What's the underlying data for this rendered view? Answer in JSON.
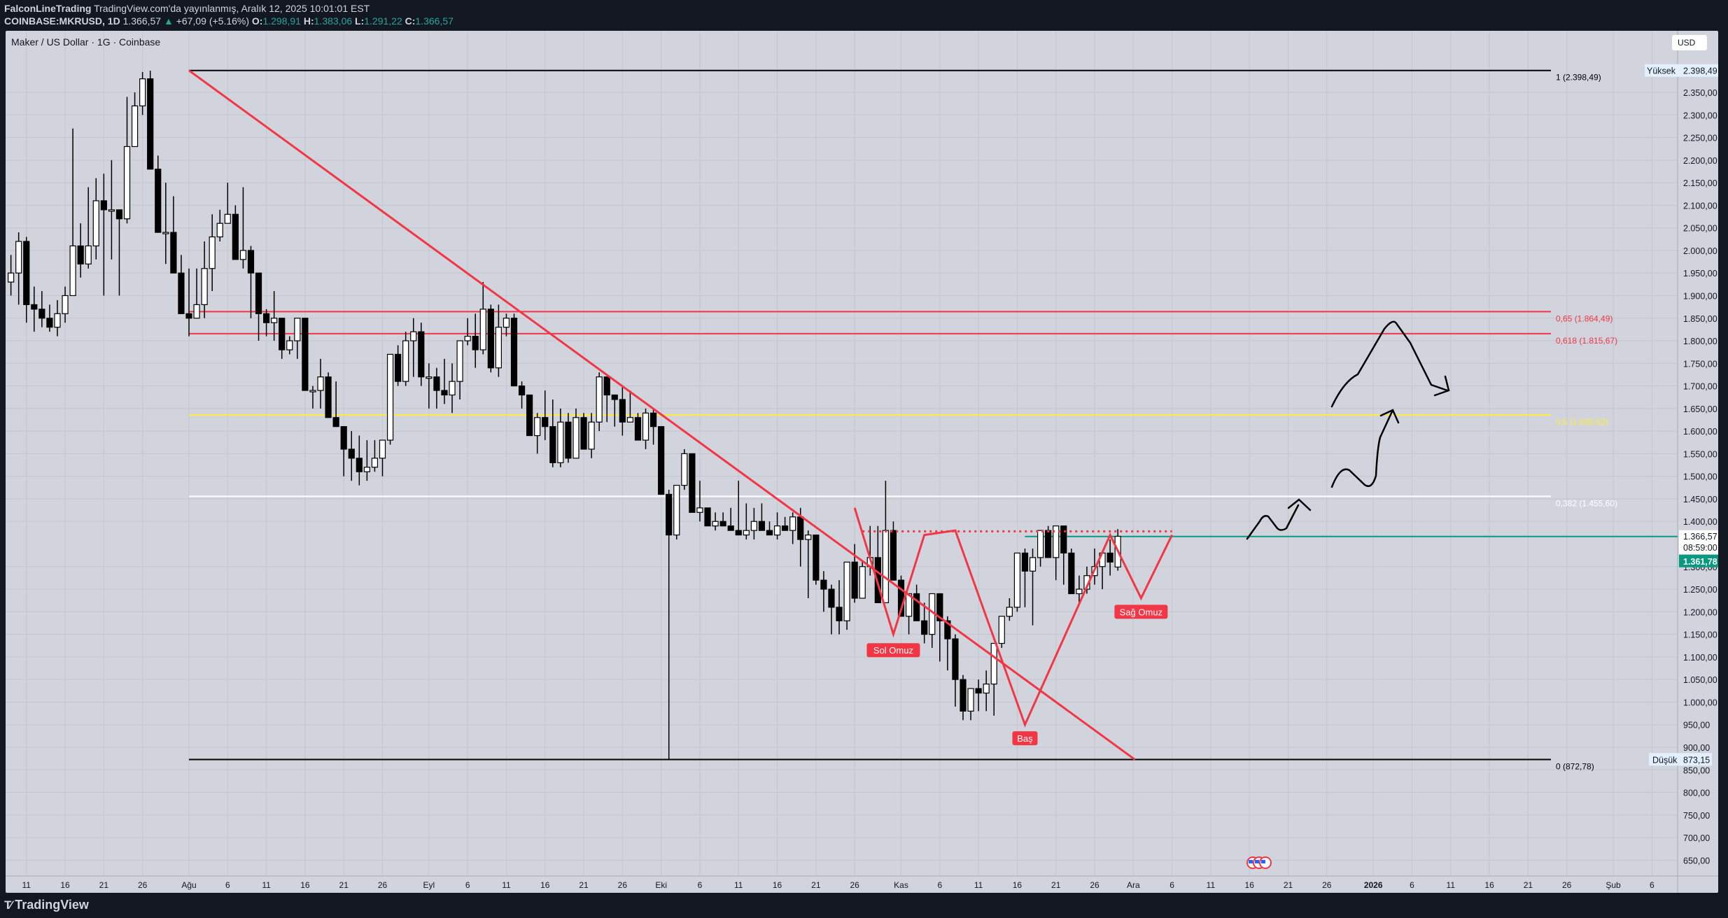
{
  "header": {
    "author": "FalconLineTrading",
    "published": "TradingView.com'da yayınlanmış, Aralık 12, 2025 10:01:01 EST",
    "symbol": "COINBASE:MKRUSD, 1D",
    "last": "1.366,57",
    "change": "+67,09 (+5.16%)",
    "o_label": "O:",
    "o": "1.298,91",
    "h_label": "H:",
    "h": "1.383,06",
    "l_label": "L:",
    "l": "1.291,22",
    "c_label": "C:",
    "c": "1.366,57"
  },
  "chart": {
    "legend_title": "Maker / US Dollar · 1G · Coinbase",
    "currency_button": "USD",
    "high_tag": "Yüksek",
    "high_value": "2.398,49",
    "low_tag": "Düşük",
    "low_value": "873,15",
    "last_price": "1.366,57",
    "countdown": "08:59:00",
    "second_price": "1.361,78",
    "patterns": {
      "left_shoulder": "Sol Omuz",
      "head": "Baş",
      "right_shoulder": "Sağ Omuz"
    }
  },
  "footer": {
    "logo": "TradingView"
  },
  "colors": {
    "background": "#d1d4dc",
    "frame": "#131722",
    "trendline": "#f23645",
    "fib_red": "#f23645",
    "fib_yellow": "#ffeb3b",
    "fib_white": "#ffffff",
    "current_price": "#089981",
    "label_red": "#f23645"
  },
  "chart_data": {
    "type": "candlestick",
    "title": "Maker / US Dollar · 1G · Coinbase",
    "xlabel": "",
    "ylabel": "USD",
    "ylim": [
      620,
      2420
    ],
    "grid": true,
    "y_ticks": [
      "2.350,00",
      "2.300,00",
      "2.250,00",
      "2.200,00",
      "2.150,00",
      "2.100,00",
      "2.050,00",
      "2.000,00",
      "1.950,00",
      "1.900,00",
      "1.850,00",
      "1.800,00",
      "1.750,00",
      "1.700,00",
      "1.650,00",
      "1.600,00",
      "1.550,00",
      "1.500,00",
      "1.450,00",
      "1.400,00",
      "1.300,00",
      "1.250,00",
      "1.200,00",
      "1.150,00",
      "1.100,00",
      "1.050,00",
      "1.000,00",
      "950,00",
      "900,00",
      "850,00",
      "800,00",
      "750,00",
      "700,00",
      "650,00"
    ],
    "x_ticks": [
      {
        "label": "11",
        "day": -21
      },
      {
        "label": "16",
        "day": -16
      },
      {
        "label": "21",
        "day": -11
      },
      {
        "label": "26",
        "day": -6
      },
      {
        "label": "Ağu",
        "day": 0
      },
      {
        "label": "6",
        "day": 5
      },
      {
        "label": "11",
        "day": 10
      },
      {
        "label": "16",
        "day": 15
      },
      {
        "label": "21",
        "day": 20
      },
      {
        "label": "26",
        "day": 25
      },
      {
        "label": "Eyl",
        "day": 31
      },
      {
        "label": "6",
        "day": 36
      },
      {
        "label": "11",
        "day": 41
      },
      {
        "label": "16",
        "day": 46
      },
      {
        "label": "21",
        "day": 51
      },
      {
        "label": "26",
        "day": 56
      },
      {
        "label": "Eki",
        "day": 61
      },
      {
        "label": "6",
        "day": 66
      },
      {
        "label": "11",
        "day": 71
      },
      {
        "label": "16",
        "day": 76
      },
      {
        "label": "21",
        "day": 81
      },
      {
        "label": "26",
        "day": 86
      },
      {
        "label": "Kas",
        "day": 92
      },
      {
        "label": "6",
        "day": 97
      },
      {
        "label": "11",
        "day": 102
      },
      {
        "label": "16",
        "day": 107
      },
      {
        "label": "21",
        "day": 112
      },
      {
        "label": "26",
        "day": 117
      },
      {
        "label": "Ara",
        "day": 122
      },
      {
        "label": "6",
        "day": 127
      },
      {
        "label": "11",
        "day": 132
      },
      {
        "label": "16",
        "day": 137
      },
      {
        "label": "21",
        "day": 142
      },
      {
        "label": "26",
        "day": 147
      },
      {
        "label": "2026",
        "day": 153
      },
      {
        "label": "6",
        "day": 158
      },
      {
        "label": "11",
        "day": 163
      },
      {
        "label": "16",
        "day": 168
      },
      {
        "label": "21",
        "day": 173
      },
      {
        "label": "26",
        "day": 178
      },
      {
        "label": "Şub",
        "day": 184
      },
      {
        "label": "6",
        "day": 189
      }
    ],
    "fibonacci": [
      {
        "level": "1",
        "value": 2398.49,
        "label": "1 (2.398,49)",
        "color": "#000000"
      },
      {
        "level": "0.65",
        "value": 1864.49,
        "label": "0,65 (1.864,49)",
        "color": "#f23645"
      },
      {
        "level": "0.618",
        "value": 1815.67,
        "label": "0,618 (1.815,67)",
        "color": "#f23645"
      },
      {
        "level": "0.5",
        "value": 1635.63,
        "label": "0,5 (1.635,63)",
        "color": "#ffeb3b"
      },
      {
        "level": "0.382",
        "value": 1455.6,
        "label": "0,382 (1.455,60)",
        "color": "#ffffff"
      },
      {
        "level": "0",
        "value": 872.78,
        "label": "0 (872,78)",
        "color": "#000000"
      }
    ],
    "candles_start_day": -23,
    "candles": [
      [
        1930,
        1990,
        1900,
        1950
      ],
      [
        1950,
        2040,
        1880,
        2020
      ],
      [
        2020,
        2030,
        1840,
        1880
      ],
      [
        1880,
        1920,
        1820,
        1870
      ],
      [
        1870,
        1910,
        1830,
        1850
      ],
      [
        1850,
        1880,
        1820,
        1830
      ],
      [
        1830,
        1890,
        1810,
        1860
      ],
      [
        1860,
        1920,
        1840,
        1900
      ],
      [
        1900,
        2270,
        1900,
        2010
      ],
      [
        2010,
        2060,
        1940,
        1970
      ],
      [
        1970,
        2140,
        1960,
        2010
      ],
      [
        2010,
        2160,
        1980,
        2110
      ],
      [
        2110,
        2170,
        1900,
        2090
      ],
      [
        2090,
        2200,
        1980,
        2090
      ],
      [
        2090,
        2080,
        1900,
        2070
      ],
      [
        2070,
        2340,
        2060,
        2230
      ],
      [
        2230,
        2350,
        2230,
        2320
      ],
      [
        2320,
        2395,
        2300,
        2380
      ],
      [
        2380,
        2398,
        2180,
        2180
      ],
      [
        2180,
        2210,
        2070,
        2040
      ],
      [
        2040,
        2150,
        1970,
        2040
      ],
      [
        2040,
        2120,
        2030,
        1950
      ],
      [
        1950,
        1990,
        1930,
        1860
      ],
      [
        1860,
        1960,
        1810,
        1850
      ],
      [
        1850,
        1960,
        1870,
        1880
      ],
      [
        1880,
        2020,
        1850,
        1960
      ],
      [
        1960,
        2080,
        1910,
        2030
      ],
      [
        2030,
        2090,
        2020,
        2060
      ],
      [
        2060,
        2150,
        2060,
        2080
      ],
      [
        2080,
        2100,
        1980,
        1980
      ],
      [
        1980,
        2140,
        1960,
        2000
      ],
      [
        2000,
        2010,
        1850,
        1950
      ],
      [
        1950,
        1940,
        1800,
        1860
      ],
      [
        1860,
        1870,
        1810,
        1840
      ],
      [
        1840,
        1910,
        1800,
        1850
      ],
      [
        1850,
        1850,
        1760,
        1780
      ],
      [
        1780,
        1810,
        1770,
        1800
      ],
      [
        1800,
        1800,
        1760,
        1850
      ],
      [
        1850,
        1820,
        1700,
        1690
      ],
      [
        1690,
        1700,
        1650,
        1690
      ],
      [
        1690,
        1760,
        1650,
        1720
      ],
      [
        1720,
        1730,
        1640,
        1630
      ],
      [
        1630,
        1710,
        1630,
        1610
      ],
      [
        1610,
        1600,
        1500,
        1560
      ],
      [
        1560,
        1600,
        1490,
        1540
      ],
      [
        1540,
        1590,
        1480,
        1510
      ],
      [
        1510,
        1580,
        1490,
        1520
      ],
      [
        1520,
        1580,
        1510,
        1540
      ],
      [
        1540,
        1560,
        1500,
        1580
      ],
      [
        1580,
        1750,
        1570,
        1770
      ],
      [
        1770,
        1790,
        1700,
        1710
      ],
      [
        1710,
        1820,
        1700,
        1800
      ],
      [
        1800,
        1850,
        1720,
        1820
      ],
      [
        1820,
        1840,
        1700,
        1720
      ],
      [
        1720,
        1750,
        1650,
        1720
      ],
      [
        1720,
        1740,
        1650,
        1690
      ],
      [
        1690,
        1760,
        1660,
        1680
      ],
      [
        1680,
        1750,
        1640,
        1710
      ],
      [
        1710,
        1770,
        1670,
        1800
      ],
      [
        1800,
        1850,
        1790,
        1810
      ],
      [
        1810,
        1860,
        1740,
        1780
      ],
      [
        1780,
        1930,
        1770,
        1870
      ],
      [
        1870,
        1880,
        1730,
        1740
      ],
      [
        1740,
        1880,
        1720,
        1830
      ],
      [
        1830,
        1860,
        1810,
        1850
      ],
      [
        1850,
        1860,
        1700,
        1700
      ],
      [
        1700,
        1710,
        1650,
        1680
      ],
      [
        1680,
        1680,
        1600,
        1590
      ],
      [
        1590,
        1640,
        1550,
        1630
      ],
      [
        1630,
        1690,
        1580,
        1610
      ],
      [
        1610,
        1670,
        1520,
        1530
      ],
      [
        1530,
        1650,
        1520,
        1620
      ],
      [
        1620,
        1640,
        1530,
        1540
      ],
      [
        1540,
        1650,
        1540,
        1630
      ],
      [
        1630,
        1640,
        1560,
        1560
      ],
      [
        1560,
        1640,
        1540,
        1620
      ],
      [
        1620,
        1730,
        1600,
        1720
      ],
      [
        1720,
        1700,
        1620,
        1680
      ],
      [
        1680,
        1680,
        1610,
        1670
      ],
      [
        1670,
        1700,
        1590,
        1620
      ],
      [
        1620,
        1690,
        1620,
        1630
      ],
      [
        1630,
        1640,
        1580,
        1580
      ],
      [
        1580,
        1650,
        1560,
        1640
      ],
      [
        1640,
        1650,
        1570,
        1610
      ],
      [
        1610,
        1600,
        1540,
        1460
      ],
      [
        1460,
        1470,
        872,
        1370
      ],
      [
        1370,
        1470,
        1360,
        1480
      ],
      [
        1480,
        1560,
        1470,
        1550
      ],
      [
        1550,
        1530,
        1420,
        1420
      ],
      [
        1420,
        1490,
        1400,
        1430
      ],
      [
        1430,
        1430,
        1400,
        1390
      ],
      [
        1390,
        1420,
        1380,
        1400
      ],
      [
        1400,
        1420,
        1390,
        1390
      ],
      [
        1390,
        1430,
        1380,
        1380
      ],
      [
        1380,
        1490,
        1380,
        1370
      ],
      [
        1370,
        1440,
        1360,
        1380
      ],
      [
        1380,
        1430,
        1360,
        1400
      ],
      [
        1400,
        1440,
        1380,
        1380
      ],
      [
        1380,
        1400,
        1370,
        1370
      ],
      [
        1370,
        1420,
        1360,
        1390
      ],
      [
        1390,
        1410,
        1380,
        1380
      ],
      [
        1380,
        1420,
        1350,
        1410
      ],
      [
        1410,
        1430,
        1300,
        1360
      ],
      [
        1360,
        1380,
        1230,
        1370
      ],
      [
        1370,
        1360,
        1260,
        1270
      ],
      [
        1270,
        1290,
        1200,
        1250
      ],
      [
        1250,
        1260,
        1150,
        1210
      ],
      [
        1210,
        1270,
        1150,
        1180
      ],
      [
        1180,
        1250,
        1160,
        1310
      ],
      [
        1310,
        1350,
        1220,
        1230
      ],
      [
        1230,
        1310,
        1240,
        1300
      ],
      [
        1300,
        1390,
        1280,
        1320
      ],
      [
        1320,
        1390,
        1260,
        1220
      ],
      [
        1220,
        1490,
        1240,
        1380
      ],
      [
        1380,
        1400,
        1320,
        1270
      ],
      [
        1270,
        1280,
        1200,
        1190
      ],
      [
        1190,
        1210,
        1150,
        1240
      ],
      [
        1240,
        1260,
        1200,
        1180
      ],
      [
        1180,
        1220,
        1130,
        1150
      ],
      [
        1150,
        1220,
        1120,
        1240
      ],
      [
        1240,
        1230,
        1090,
        1180
      ],
      [
        1180,
        1190,
        1070,
        1140
      ],
      [
        1140,
        1150,
        990,
        1050
      ],
      [
        1050,
        1060,
        960,
        980
      ],
      [
        980,
        1010,
        960,
        1030
      ],
      [
        1030,
        1050,
        980,
        1020
      ],
      [
        1020,
        1070,
        980,
        1040
      ],
      [
        1040,
        1070,
        970,
        1130
      ],
      [
        1130,
        1190,
        1120,
        1190
      ],
      [
        1190,
        1230,
        1180,
        1210
      ],
      [
        1210,
        1300,
        1200,
        1330
      ],
      [
        1330,
        1340,
        1210,
        1290
      ],
      [
        1290,
        1340,
        1170,
        1320
      ],
      [
        1320,
        1380,
        1300,
        1380
      ],
      [
        1380,
        1390,
        1320,
        1320
      ],
      [
        1320,
        1380,
        1270,
        1390
      ],
      [
        1390,
        1390,
        1260,
        1330
      ],
      [
        1330,
        1340,
        1240,
        1240
      ],
      [
        1240,
        1280,
        1220,
        1250
      ],
      [
        1250,
        1300,
        1240,
        1280
      ],
      [
        1280,
        1340,
        1260,
        1300
      ],
      [
        1300,
        1330,
        1250,
        1330
      ],
      [
        1330,
        1360,
        1280,
        1310
      ],
      [
        1299,
        1383,
        1291,
        1367
      ]
    ],
    "trendline": {
      "from": {
        "day": 0,
        "price": 2398.49
      },
      "to": {
        "day": 110,
        "price": 872.78
      }
    },
    "hs_pattern": {
      "points": [
        {
          "day": 86,
          "price": 1430
        },
        {
          "day": 91,
          "price": 1150
        },
        {
          "day": 95,
          "price": 1370
        },
        {
          "day": 99,
          "price": 1380
        },
        {
          "day": 108,
          "price": 950
        },
        {
          "day": 119,
          "price": 1370
        },
        {
          "day": 123,
          "price": 1230
        },
        {
          "day": 127,
          "price": 1370
        }
      ],
      "neckline": 1378,
      "labels": [
        {
          "text": "Sol Omuz",
          "day": 91,
          "price": 1115
        },
        {
          "text": "Baş",
          "day": 108,
          "price": 920
        },
        {
          "text": "Sağ Omuz",
          "day": 123,
          "price": 1200
        }
      ]
    },
    "current_price": 1366.57
  }
}
